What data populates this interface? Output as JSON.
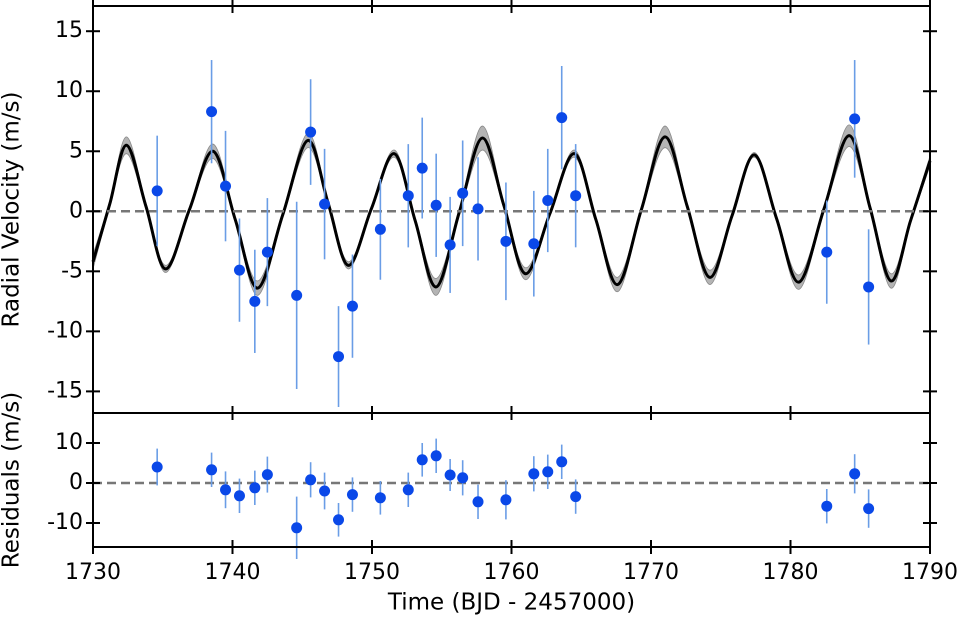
{
  "chart_data": [
    {
      "type": "scatter",
      "ylabel": "Radial Velocity (m/s)",
      "xlim": [
        1730,
        1790
      ],
      "xticks": [
        1730,
        1740,
        1750,
        1760,
        1770,
        1780,
        1790
      ],
      "ylim": [
        -16.8,
        17.1
      ],
      "yticks": [
        -15,
        -10,
        -5,
        0,
        5,
        10,
        15
      ],
      "hline": 0,
      "color": "#0a48e8",
      "ecolor": "#6a9de6",
      "x": [
        1734.6,
        1738.5,
        1739.5,
        1740.5,
        1741.6,
        1742.5,
        1744.6,
        1745.6,
        1746.6,
        1747.6,
        1748.6,
        1750.6,
        1752.6,
        1753.6,
        1754.6,
        1755.6,
        1756.5,
        1757.6,
        1759.6,
        1761.6,
        1762.6,
        1763.6,
        1764.6,
        1782.6,
        1784.6,
        1785.6
      ],
      "values": [
        1.7,
        8.3,
        2.1,
        -4.9,
        -7.5,
        -3.4,
        -7.0,
        6.6,
        0.6,
        -12.1,
        -7.9,
        -1.5,
        1.3,
        3.6,
        0.5,
        -2.8,
        1.5,
        0.2,
        -2.5,
        -2.7,
        0.9,
        7.8,
        1.3,
        -3.4,
        7.7,
        -6.3
      ],
      "errors": [
        4.6,
        4.3,
        4.6,
        4.3,
        4.3,
        4.5,
        7.8,
        4.4,
        4.6,
        4.2,
        4.3,
        4.2,
        4.3,
        4.2,
        4.3,
        4.0,
        4.4,
        4.3,
        4.9,
        4.4,
        4.3,
        4.3,
        4.3,
        4.3,
        4.9,
        4.8
      ],
      "model": {
        "color": "#000000",
        "band_color": "#b4b4b4",
        "x": [
          1730,
          1731.2,
          1732.4,
          1733.8,
          1735.2,
          1736.9,
          1738.6,
          1740.2,
          1741.8,
          1743.6,
          1745.4,
          1746.85,
          1748.3,
          1749.95,
          1751.6,
          1753.1,
          1754.6,
          1756.25,
          1757.9,
          1759.45,
          1761.0,
          1762.75,
          1764.5,
          1766.05,
          1767.6,
          1769.3,
          1771.0,
          1772.6,
          1774.2,
          1775.8,
          1777.4,
          1779.0,
          1780.6,
          1782.4,
          1784.2,
          1785.7,
          1787.2,
          1788.6,
          1790
        ],
        "values": [
          -4.2,
          0.6,
          5.5,
          0.4,
          -4.8,
          0.1,
          5.0,
          -0.7,
          -6.4,
          -0.3,
          5.9,
          0.7,
          -4.5,
          0.2,
          4.8,
          -0.8,
          -6.3,
          -0.1,
          6.1,
          0.5,
          -5.2,
          -0.2,
          4.8,
          -0.7,
          -6.1,
          0.1,
          6.2,
          0.4,
          -5.5,
          -0.4,
          4.7,
          -0.6,
          -5.9,
          0.2,
          6.3,
          0.3,
          -5.8,
          -0.8,
          4.2
        ],
        "errors": [
          0.6,
          0.2,
          0.7,
          0.2,
          0.3,
          0.1,
          0.6,
          0.2,
          0.6,
          0.2,
          0.6,
          0.2,
          0.3,
          0.1,
          0.3,
          0.2,
          0.7,
          0.2,
          1.0,
          0.2,
          0.5,
          0.1,
          0.3,
          0.2,
          0.6,
          0.2,
          0.9,
          0.2,
          0.6,
          0.1,
          0.2,
          0.2,
          0.6,
          0.2,
          0.9,
          0.2,
          0.6,
          0.2,
          0.4
        ]
      }
    },
    {
      "type": "scatter",
      "ylabel": "Residuals (m/s)",
      "xlabel": "Time (BJD - 2457000)",
      "xlim": [
        1730,
        1790
      ],
      "xticks": [
        1730,
        1740,
        1750,
        1760,
        1770,
        1780,
        1790
      ],
      "ylim": [
        -16,
        17.5
      ],
      "yticks": [
        -10,
        0,
        10
      ],
      "hline": 0,
      "color": "#0a48e8",
      "ecolor": "#6a9de6",
      "x": [
        1734.6,
        1738.5,
        1739.5,
        1740.5,
        1741.6,
        1742.5,
        1744.6,
        1745.6,
        1746.6,
        1747.6,
        1748.6,
        1750.6,
        1752.6,
        1753.6,
        1754.6,
        1755.6,
        1756.5,
        1757.6,
        1759.6,
        1761.6,
        1762.6,
        1763.6,
        1764.6,
        1782.6,
        1784.6,
        1785.6
      ],
      "values": [
        4.0,
        3.3,
        -1.7,
        -3.2,
        -1.2,
        2.1,
        -11.2,
        0.8,
        -2.0,
        -9.2,
        -2.9,
        -3.7,
        -1.7,
        5.8,
        6.8,
        2.0,
        1.3,
        -4.7,
        -4.2,
        2.3,
        2.8,
        5.3,
        -3.4,
        -5.8,
        2.3,
        -6.4
      ],
      "errors": [
        4.6,
        4.3,
        4.6,
        4.3,
        4.3,
        4.5,
        7.8,
        4.4,
        4.6,
        4.2,
        4.3,
        4.2,
        4.3,
        4.2,
        4.3,
        4.0,
        4.4,
        4.3,
        4.9,
        4.4,
        4.3,
        4.3,
        4.3,
        4.3,
        4.9,
        4.8
      ]
    }
  ]
}
